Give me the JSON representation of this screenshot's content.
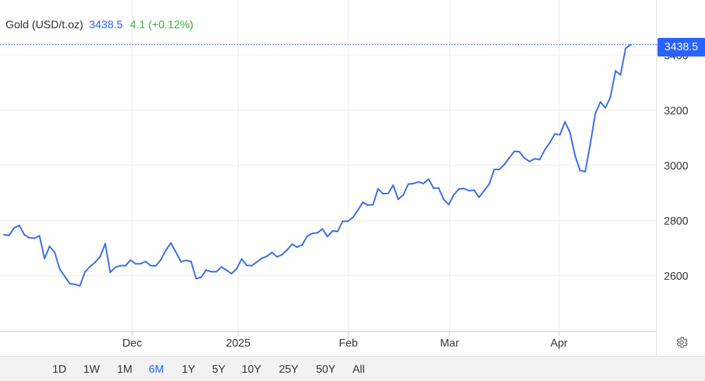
{
  "header": {
    "instrument": "Gold (USD/t.oz)",
    "price": "3438.5",
    "change": "4.1 (+0.12%)"
  },
  "last_price_label": "3438.5",
  "ranges": {
    "items": [
      "1D",
      "1W",
      "1M",
      "6M",
      "1Y",
      "5Y",
      "10Y",
      "25Y",
      "50Y",
      "All"
    ],
    "selected": "6M"
  },
  "colors": {
    "line": "#3b6fe8",
    "accent": "#2962ff",
    "change_positive": "#3cb043",
    "grid": "#eaeaea"
  },
  "icons": {
    "settings": "gear-icon"
  },
  "chart_data": {
    "type": "line",
    "title": "Gold (USD/t.oz)",
    "xlabel": "",
    "ylabel": "",
    "x_ticks": [
      "Dec",
      "2025",
      "Feb",
      "Mar",
      "Apr"
    ],
    "y_ticks": [
      2600,
      2800,
      3000,
      3200,
      3400
    ],
    "ylim": [
      2400,
      3600
    ],
    "grid": true,
    "legend": "none",
    "series": [
      {
        "values": [
          2748,
          2746,
          2773,
          2782,
          2748,
          2737,
          2736,
          2744,
          2662,
          2706,
          2684,
          2624,
          2597,
          2571,
          2568,
          2563,
          2613,
          2633,
          2648,
          2668,
          2716,
          2612,
          2630,
          2636,
          2636,
          2656,
          2643,
          2643,
          2651,
          2636,
          2635,
          2657,
          2692,
          2718,
          2685,
          2650,
          2655,
          2651,
          2589,
          2594,
          2620,
          2614,
          2614,
          2631,
          2620,
          2607,
          2624,
          2660,
          2637,
          2636,
          2649,
          2663,
          2670,
          2684,
          2668,
          2676,
          2693,
          2714,
          2703,
          2712,
          2743,
          2753,
          2755,
          2769,
          2742,
          2762,
          2760,
          2797,
          2797,
          2811,
          2837,
          2866,
          2856,
          2857,
          2915,
          2897,
          2898,
          2928,
          2877,
          2893,
          2932,
          2934,
          2940,
          2934,
          2950,
          2917,
          2918,
          2876,
          2858,
          2893,
          2914,
          2916,
          2908,
          2910,
          2884,
          2908,
          2932,
          2985,
          2985,
          3003,
          3028,
          3051,
          3049,
          3026,
          3014,
          3024,
          3021,
          3056,
          3082,
          3114,
          3111,
          3158,
          3119,
          3035,
          2981,
          2977,
          3076,
          3187,
          3230,
          3209,
          3247,
          3343,
          3328,
          3425,
          3438
        ]
      }
    ]
  }
}
